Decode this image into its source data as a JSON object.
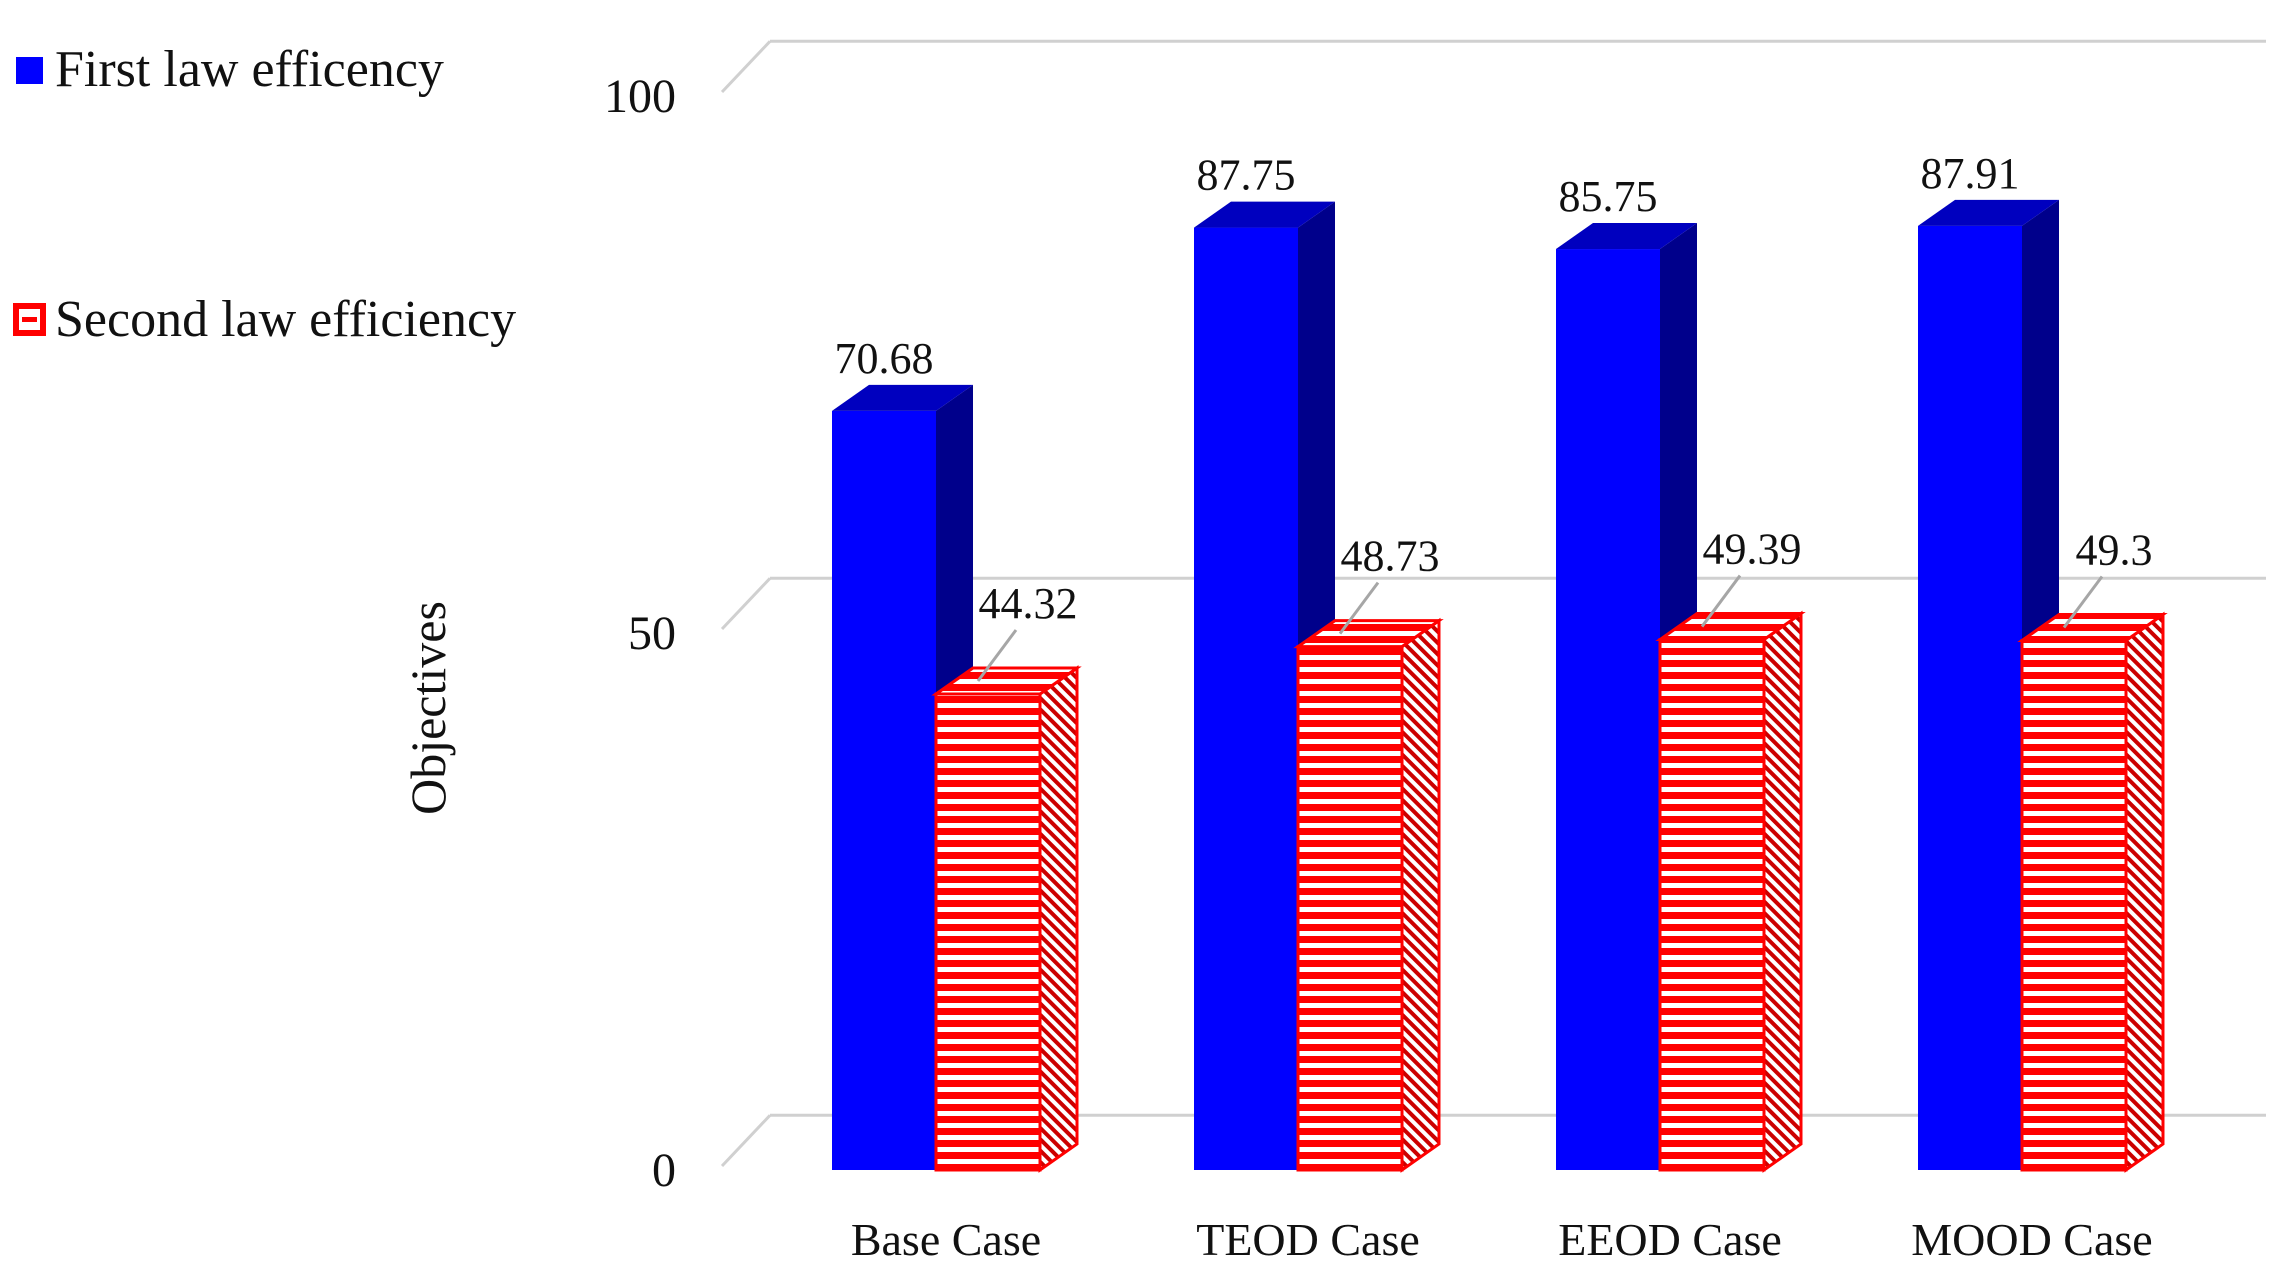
{
  "chart_data": {
    "type": "bar",
    "title": "",
    "xlabel": "",
    "ylabel": "Objectives",
    "ylim": [
      0,
      100
    ],
    "yticks": [
      "0",
      "50",
      "100"
    ],
    "grid": true,
    "legend_position": "top-left",
    "categories": [
      "Base Case",
      "TEOD Case",
      "EEOD Case",
      "MOOD Case"
    ],
    "series": [
      {
        "name": "First law efficency",
        "values": [
          70.68,
          87.75,
          85.75,
          87.91
        ],
        "labels": [
          "70.68",
          "87.75",
          "85.75",
          "87.91"
        ],
        "color": "#0000ff",
        "side_color": "#00008b"
      },
      {
        "name": "Second law efficiency",
        "values": [
          44.32,
          48.73,
          49.39,
          49.3
        ],
        "labels": [
          "44.32",
          "48.73",
          "49.39",
          "49.3"
        ],
        "color": "#ff0000",
        "pattern": "horizontal-stripes"
      }
    ]
  }
}
